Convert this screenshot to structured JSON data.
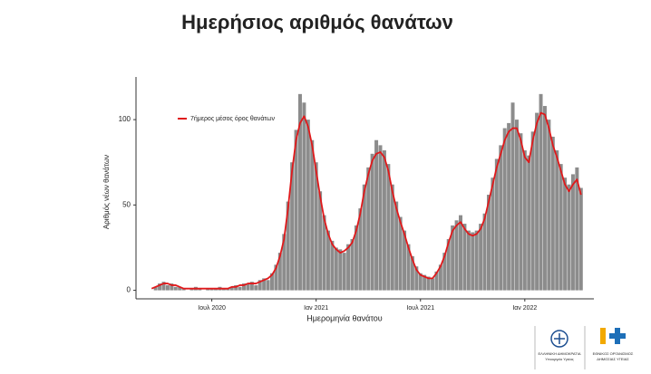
{
  "chart_data": {
    "type": "bar-line",
    "title": "Ημερήσιος αριθμός θανάτων",
    "xlabel": "Ημερομηνία θανάτου",
    "ylabel": "Αριθμός νέων θανάτων",
    "categories": [
      null,
      null,
      null,
      null,
      null,
      null,
      null,
      null,
      null,
      null,
      null,
      null,
      null,
      null,
      null,
      "Ιουλ 2020",
      null,
      null,
      null,
      null,
      null,
      null,
      null,
      null,
      null,
      null,
      null,
      null,
      null,
      null,
      null,
      null,
      null,
      null,
      null,
      null,
      null,
      null,
      null,
      null,
      null,
      "Ιαν 2021",
      null,
      null,
      null,
      null,
      null,
      null,
      null,
      null,
      null,
      null,
      null,
      null,
      null,
      null,
      null,
      null,
      null,
      null,
      null,
      null,
      null,
      null,
      null,
      null,
      null,
      "Ιουλ 2021",
      null,
      null,
      null,
      null,
      null,
      null,
      null,
      null,
      null,
      null,
      null,
      null,
      null,
      null,
      null,
      null,
      null,
      null,
      null,
      null,
      null,
      null,
      null,
      null,
      null,
      "Ιαν 2022",
      null,
      null,
      null,
      null,
      null,
      null,
      null,
      null,
      null,
      null,
      null,
      null,
      null,
      null
    ],
    "series": [
      {
        "color": "#8c8c8c",
        "type": "bar",
        "values": [
          0,
          2,
          4,
          5,
          3,
          4,
          2,
          2,
          1,
          0,
          1,
          2,
          1,
          0,
          1,
          1,
          1,
          2,
          1,
          1,
          2,
          3,
          2,
          4,
          4,
          5,
          3,
          6,
          7,
          6,
          10,
          15,
          22,
          33,
          52,
          75,
          94,
          115,
          110,
          100,
          88,
          75,
          58,
          44,
          35,
          29,
          25,
          24,
          22,
          27,
          30,
          38,
          48,
          62,
          72,
          80,
          88,
          85,
          82,
          74,
          62,
          52,
          43,
          35,
          27,
          20,
          14,
          10,
          9,
          8,
          7,
          11,
          15,
          22,
          30,
          38,
          41,
          44,
          39,
          35,
          34,
          35,
          39,
          45,
          56,
          66,
          77,
          85,
          95,
          98,
          110,
          100,
          92,
          82,
          79,
          93,
          104,
          115,
          108,
          100,
          90,
          82,
          74,
          66,
          62,
          68,
          72,
          60
        ]
      },
      {
        "name": "7ήμερος μέσος όρος θανάτων",
        "color": "#e0191b",
        "type": "line",
        "values": [
          1,
          2,
          3,
          4,
          4,
          3,
          3,
          2,
          1,
          1,
          1,
          1,
          1,
          1,
          1,
          1,
          1,
          1,
          1,
          1,
          2,
          2,
          3,
          3,
          4,
          4,
          4,
          5,
          6,
          7,
          9,
          13,
          20,
          30,
          48,
          70,
          88,
          98,
          102,
          96,
          85,
          70,
          55,
          42,
          33,
          27,
          24,
          22,
          23,
          25,
          28,
          35,
          45,
          58,
          68,
          76,
          80,
          81,
          78,
          70,
          58,
          48,
          40,
          33,
          25,
          18,
          12,
          9,
          8,
          7,
          7,
          10,
          14,
          20,
          28,
          35,
          38,
          40,
          36,
          33,
          32,
          33,
          36,
          42,
          52,
          62,
          72,
          80,
          88,
          93,
          95,
          95,
          88,
          78,
          75,
          88,
          98,
          104,
          103,
          95,
          85,
          78,
          70,
          62,
          58,
          62,
          65,
          56
        ]
      }
    ],
    "ylim": [
      -5,
      125
    ],
    "yticks": [
      0,
      50,
      100
    ],
    "grid": false,
    "legend": "upper-left"
  },
  "logos": {
    "left": [
      "ΕΛΛΗΝΙΚΗ ΔΗΜΟΚΡΑΤΙΑ",
      "Υπουργείο Υγείας"
    ],
    "right": [
      "ΕΘΝΙΚΟΣ ΟΡΓΑΝΙΣΜΟΣ",
      "ΔΗΜΟΣΙΑΣ ΥΓΕΙΑΣ"
    ]
  }
}
